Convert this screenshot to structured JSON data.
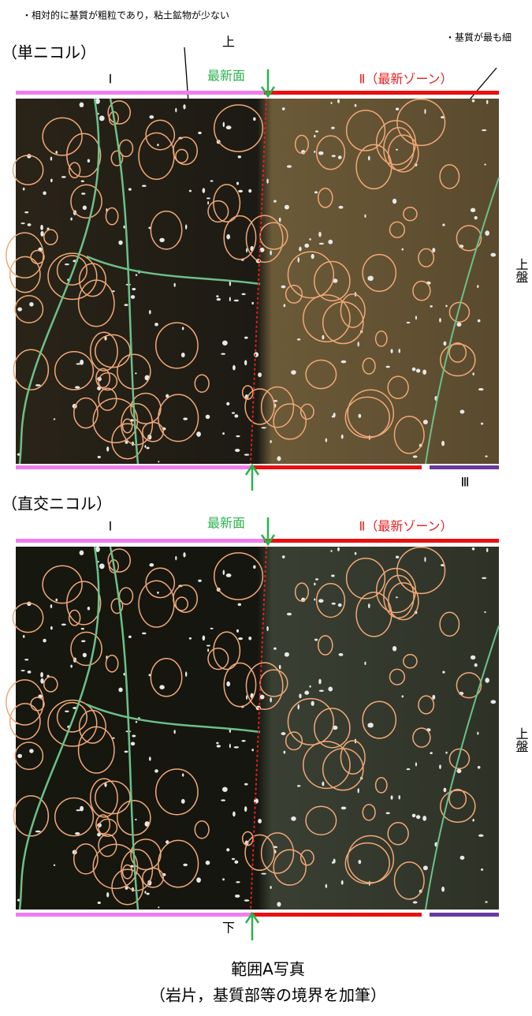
{
  "notes": {
    "left": "・相対的に基質が粗粒であり，粘土鉱物が少ない",
    "right": "・基質が最も細"
  },
  "top_label": "上",
  "panels": [
    {
      "title": "（単ニコル）",
      "zone_1": "Ⅰ",
      "surface": "最新面",
      "zone_2": "Ⅱ（最新ゾーン）",
      "zone_3": "Ⅲ",
      "side": "上盤"
    },
    {
      "title": "（直交ニコル）",
      "zone_1": "Ⅰ",
      "surface": "最新面",
      "zone_2": "Ⅱ（最新ゾーン）",
      "side": "上盤"
    }
  ],
  "bottom_label": "下",
  "caption": {
    "line_1": "範囲A写真",
    "line_2": "（岩片，基質部等の境界を加筆）"
  }
}
